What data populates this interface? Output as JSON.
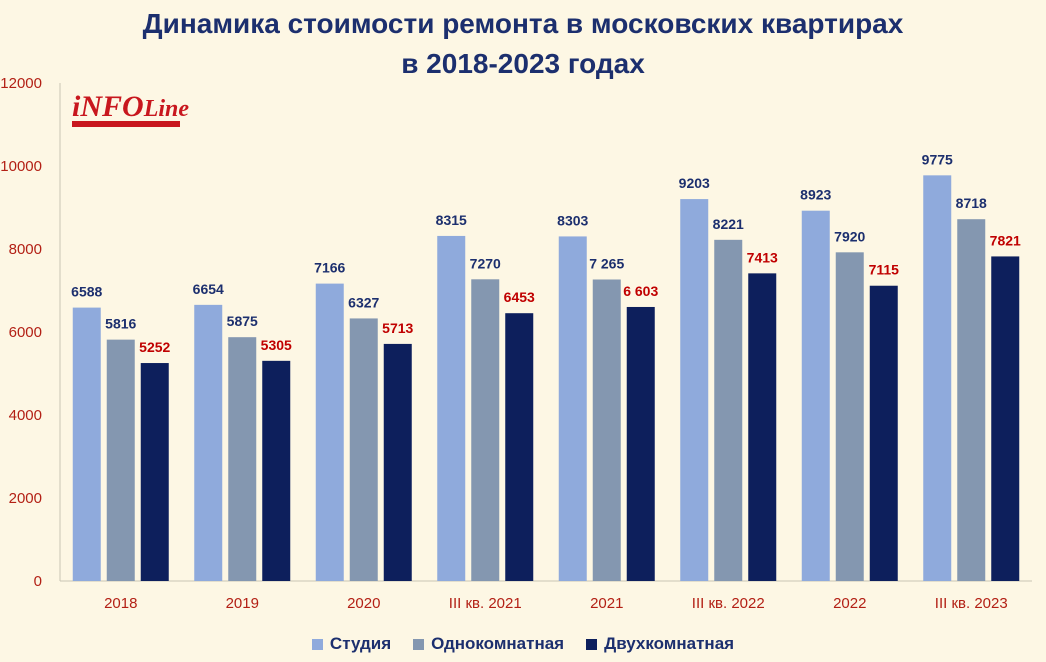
{
  "chart_data": {
    "type": "bar",
    "title_line1": "Динамика стоимости ремонта в московских квартирах",
    "title_line2": "в 2018-2023 годах",
    "categories": [
      "2018",
      "2019",
      "2020",
      "III кв. 2021",
      "2021",
      "III кв. 2022",
      "2022",
      "III кв. 2023"
    ],
    "series": [
      {
        "name": "Студия",
        "color": "#8faadc",
        "label_color": "#1c2f6e",
        "values": [
          6588,
          6654,
          7166,
          8315,
          8303,
          9203,
          8923,
          9775
        ],
        "labels": [
          "6588",
          "6654",
          "7166",
          "8315",
          "8303",
          "9203",
          "8923",
          "9775"
        ]
      },
      {
        "name": "Однокомнатная",
        "color": "#8497b0",
        "label_color": "#1c2f6e",
        "values": [
          5816,
          5875,
          6327,
          7270,
          7265,
          8221,
          7920,
          8718
        ],
        "labels": [
          "5816",
          "5875",
          "6327",
          "7270",
          "7 265",
          "8221",
          "7920",
          "8718"
        ]
      },
      {
        "name": "Двухкомнатная",
        "color": "#0d1f5c",
        "label_color": "#c00000",
        "values": [
          5252,
          5305,
          5713,
          6453,
          6603,
          7413,
          7115,
          7821
        ],
        "labels": [
          "5252",
          "5305",
          "5713",
          "6453",
          "6 603",
          "7413",
          "7115",
          "7821"
        ]
      }
    ],
    "ylim": [
      0,
      12000
    ],
    "yticks": [
      0,
      2000,
      4000,
      6000,
      8000,
      10000,
      12000
    ],
    "grid": false,
    "legend_position": "bottom"
  },
  "logo": {
    "info": "iNFO",
    "line": "Line"
  }
}
